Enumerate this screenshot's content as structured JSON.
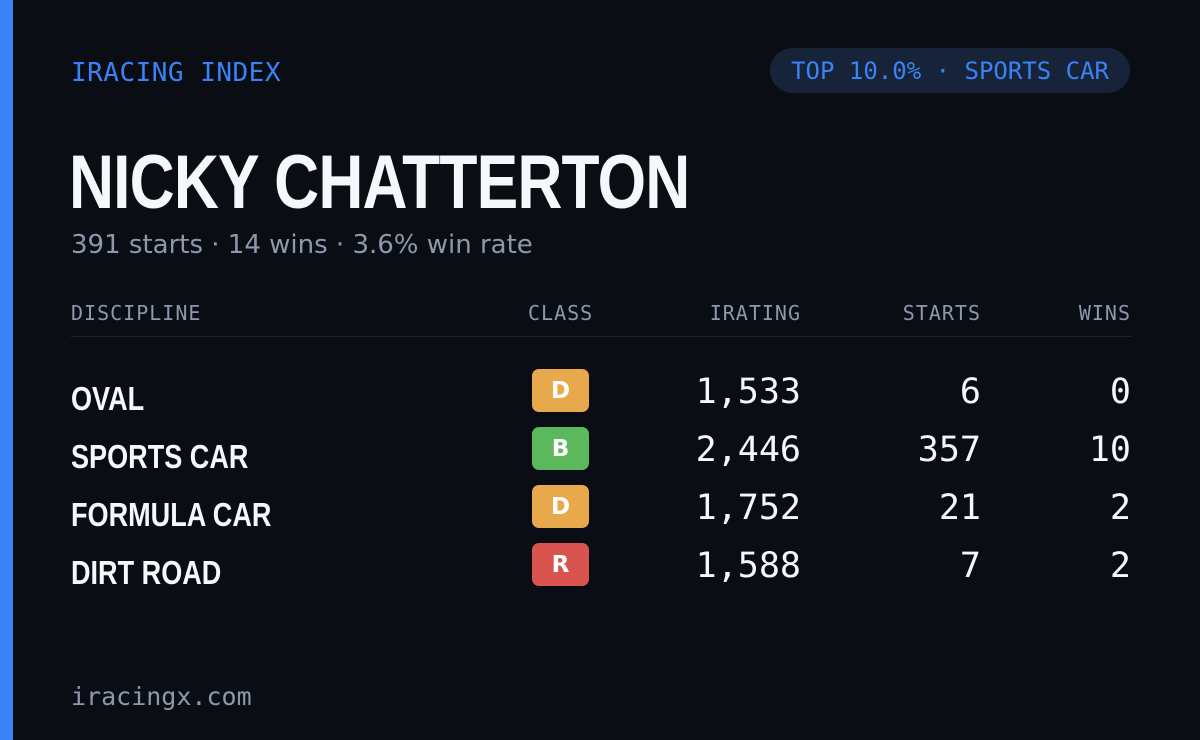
{
  "header": {
    "brand": "IRACING INDEX",
    "rank_badge": "TOP 10.0% · SPORTS CAR"
  },
  "driver": {
    "name": "NICKY CHATTERTON",
    "summary": "391 starts · 14 wins · 3.6% win rate"
  },
  "table": {
    "columns": {
      "discipline": "DISCIPLINE",
      "class": "CLASS",
      "irating": "IRATING",
      "starts": "STARTS",
      "wins": "WINS"
    },
    "rows": [
      {
        "discipline": "OVAL",
        "class": "D",
        "class_color": "#e8a94c",
        "irating": "1,533",
        "starts": "6",
        "wins": "0"
      },
      {
        "discipline": "SPORTS CAR",
        "class": "B",
        "class_color": "#5cb85c",
        "irating": "2,446",
        "starts": "357",
        "wins": "10"
      },
      {
        "discipline": "FORMULA CAR",
        "class": "D",
        "class_color": "#e8a94c",
        "irating": "1,752",
        "starts": "21",
        "wins": "2"
      },
      {
        "discipline": "DIRT ROAD",
        "class": "R",
        "class_color": "#d9534f",
        "irating": "1,588",
        "starts": "7",
        "wins": "2"
      }
    ]
  },
  "footer": {
    "site": "iracingx.com"
  },
  "colors": {
    "accent": "#3b82f6",
    "background": "#0a0d14",
    "badge_background": "#172339",
    "text_primary": "#f5f7fb",
    "text_muted": "#8e98ab"
  }
}
